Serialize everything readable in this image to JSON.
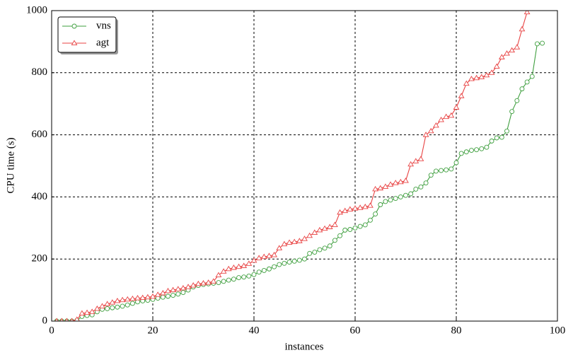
{
  "chart_data": {
    "type": "line",
    "xlabel": "instances",
    "ylabel": "CPU time (s)",
    "xlim": [
      0,
      100
    ],
    "xticks": [
      0,
      20,
      40,
      60,
      80,
      100
    ],
    "ylim": [
      0,
      1000
    ],
    "yticks": [
      0,
      200,
      400,
      600,
      800,
      1000
    ],
    "grid": true,
    "legend": "upper left",
    "series": [
      {
        "name": "vns",
        "color": "#3f9f3f",
        "marker": "circle",
        "x": [
          1,
          2,
          3,
          4,
          5,
          6,
          7,
          8,
          9,
          10,
          11,
          12,
          13,
          14,
          15,
          16,
          17,
          18,
          19,
          20,
          21,
          22,
          23,
          24,
          25,
          26,
          27,
          28,
          29,
          30,
          31,
          32,
          33,
          34,
          35,
          36,
          37,
          38,
          39,
          40,
          41,
          42,
          43,
          44,
          45,
          46,
          47,
          48,
          49,
          50,
          51,
          52,
          53,
          54,
          55,
          56,
          57,
          58,
          59,
          60,
          61,
          62,
          63,
          64,
          65,
          66,
          67,
          68,
          69,
          70,
          71,
          72,
          73,
          74,
          75,
          76,
          77,
          78,
          79,
          80,
          81,
          82,
          83,
          84,
          85,
          86,
          87,
          88,
          89,
          90,
          91,
          92,
          93,
          94,
          95,
          96,
          97
        ],
        "values": [
          0,
          0,
          0,
          0,
          2,
          15,
          18,
          20,
          30,
          38,
          40,
          43,
          45,
          48,
          52,
          57,
          62,
          65,
          67,
          70,
          74,
          77,
          80,
          83,
          87,
          92,
          100,
          110,
          115,
          118,
          120,
          122,
          124,
          128,
          132,
          135,
          140,
          142,
          145,
          150,
          158,
          163,
          168,
          175,
          182,
          186,
          190,
          193,
          196,
          200,
          218,
          222,
          230,
          235,
          242,
          260,
          275,
          293,
          295,
          300,
          305,
          310,
          325,
          345,
          375,
          385,
          390,
          395,
          400,
          405,
          410,
          425,
          432,
          445,
          470,
          483,
          485,
          487,
          490,
          510,
          540,
          545,
          550,
          552,
          555,
          560,
          580,
          590,
          592,
          612,
          675,
          710,
          748,
          770,
          788,
          893,
          895
        ]
      },
      {
        "name": "agt",
        "color": "#e84343",
        "marker": "triangle",
        "x": [
          1,
          2,
          3,
          4,
          5,
          6,
          7,
          8,
          9,
          10,
          11,
          12,
          13,
          14,
          15,
          16,
          17,
          18,
          19,
          20,
          21,
          22,
          23,
          24,
          25,
          26,
          27,
          28,
          29,
          30,
          31,
          32,
          33,
          34,
          35,
          36,
          37,
          38,
          39,
          40,
          41,
          42,
          43,
          44,
          45,
          46,
          47,
          48,
          49,
          50,
          51,
          52,
          53,
          54,
          55,
          56,
          57,
          58,
          59,
          60,
          61,
          62,
          63,
          64,
          65,
          66,
          67,
          68,
          69,
          70,
          71,
          72,
          73,
          74,
          75,
          76,
          77,
          78,
          79,
          80,
          81,
          82,
          83,
          84,
          85,
          86,
          87,
          88,
          89,
          90,
          91,
          92,
          93,
          94
        ],
        "values": [
          0,
          0,
          0,
          0,
          5,
          25,
          27,
          30,
          40,
          48,
          55,
          60,
          65,
          68,
          70,
          72,
          74,
          75,
          77,
          79,
          85,
          90,
          97,
          100,
          103,
          106,
          110,
          115,
          120,
          122,
          124,
          128,
          148,
          160,
          168,
          172,
          175,
          178,
          185,
          195,
          203,
          207,
          210,
          213,
          235,
          248,
          253,
          255,
          258,
          265,
          275,
          285,
          293,
          298,
          303,
          310,
          350,
          355,
          360,
          363,
          365,
          368,
          372,
          425,
          428,
          433,
          440,
          445,
          448,
          452,
          505,
          515,
          522,
          600,
          612,
          630,
          648,
          658,
          662,
          688,
          725,
          765,
          780,
          783,
          786,
          792,
          800,
          820,
          850,
          862,
          872,
          882,
          940,
          995
        ]
      }
    ]
  }
}
